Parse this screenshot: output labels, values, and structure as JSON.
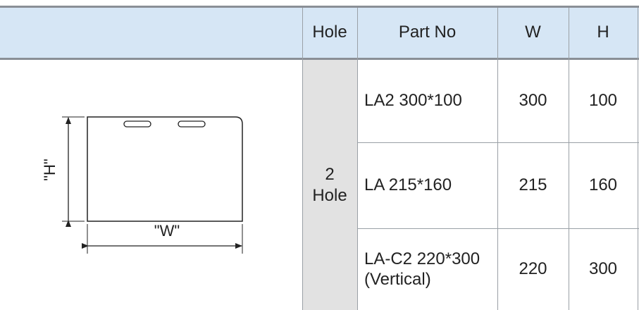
{
  "header": {
    "blank": "",
    "hole": "Hole",
    "part_no": "Part No",
    "w": "W",
    "h": "H"
  },
  "hole_group": {
    "line1": "2",
    "line2": "Hole"
  },
  "rows": [
    {
      "part_no": "LA2 300*100",
      "part_no_line2": "",
      "w": "300",
      "h": "100"
    },
    {
      "part_no": "LA 215*160",
      "part_no_line2": "",
      "w": "215",
      "h": "160"
    },
    {
      "part_no": "LA-C2 220*300",
      "part_no_line2": "(Vertical)",
      "w": "220",
      "h": "300"
    }
  ],
  "drawing": {
    "h_label": "\"H\"",
    "w_label": "\"W\""
  },
  "colors": {
    "header_bg": "#d6e6f5",
    "hole_bg": "#e2e2e2",
    "rule": "#8a8f96"
  }
}
